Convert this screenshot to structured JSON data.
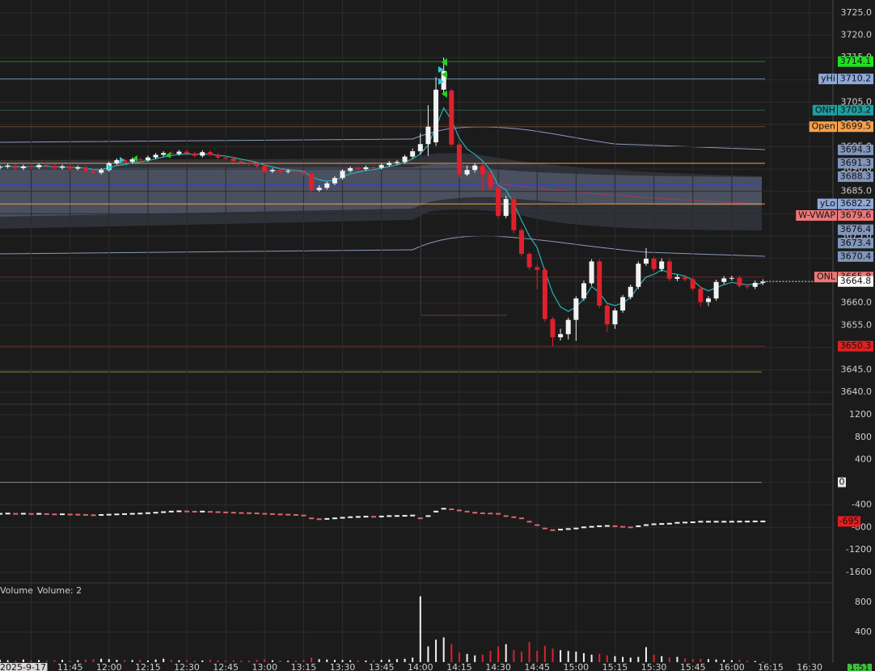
{
  "chart_data": [
    {
      "type": "candlestick",
      "xlim": [
        "11:18",
        "16:39"
      ],
      "x": [
        "11:18",
        "11:21",
        "11:24",
        "11:27",
        "11:30",
        "11:33",
        "11:36",
        "11:39",
        "11:42",
        "11:45",
        "11:48",
        "11:51",
        "11:54",
        "11:57",
        "12:00",
        "12:03",
        "12:06",
        "12:09",
        "12:12",
        "12:15",
        "12:18",
        "12:21",
        "12:24",
        "12:27",
        "12:30",
        "12:33",
        "12:36",
        "12:39",
        "12:42",
        "12:45",
        "12:48",
        "12:51",
        "12:54",
        "12:57",
        "13:00",
        "13:03",
        "13:06",
        "13:09",
        "13:12",
        "13:15",
        "13:18",
        "13:21",
        "13:24",
        "13:27",
        "13:30",
        "13:33",
        "13:36",
        "13:39",
        "13:42",
        "13:45",
        "13:48",
        "13:51",
        "13:54",
        "13:57",
        "14:00",
        "14:03",
        "14:06",
        "14:09",
        "14:12",
        "14:15",
        "14:18",
        "14:21",
        "14:24",
        "14:27",
        "14:30",
        "14:33",
        "14:36",
        "14:39",
        "14:42",
        "14:45",
        "14:48",
        "14:51",
        "14:54",
        "14:57",
        "15:00",
        "15:03",
        "15:06",
        "15:09",
        "15:12",
        "15:15",
        "15:18",
        "15:21",
        "15:24",
        "15:27",
        "15:30",
        "15:33",
        "15:36",
        "15:39",
        "15:42",
        "15:45",
        "15:48",
        "15:51",
        "15:54",
        "15:57",
        "16:00",
        "16:03",
        "16:06",
        "16:09",
        "16:12"
      ],
      "open": [
        3690.3,
        3690.5,
        3690.8,
        3690.2,
        3690.6,
        3690.4,
        3690.9,
        3690.7,
        3690.3,
        3690.6,
        3690.1,
        3690.4,
        3689.6,
        3689.2,
        3689.8,
        3691.3,
        3692.0,
        3691.6,
        3692.2,
        3692.0,
        3692.6,
        3693.2,
        3693.6,
        3693.4,
        3693.9,
        3693.5,
        3693.0,
        3693.8,
        3693.2,
        3692.6,
        3692.4,
        3691.8,
        3691.5,
        3691.1,
        3690.7,
        3689.5,
        3689.8,
        3689.4,
        3689.6,
        3689.3,
        3689.0,
        3685.3,
        3685.8,
        3686.8,
        3688.0,
        3689.6,
        3690.2,
        3690.0,
        3690.4,
        3690.3,
        3690.9,
        3691.4,
        3691.6,
        3692.8,
        3694.0,
        3695.6,
        3696.0,
        3707.8,
        3707.6,
        3695.5,
        3688.8,
        3689.8,
        3690.8,
        3688.8,
        3685.9,
        3679.5,
        3683.3,
        3676.3,
        3671.0,
        3668.0,
        3667.4,
        3656.4,
        3652.3,
        3653.0,
        3656.2,
        3661.0,
        3664.4,
        3669.3,
        3659.4,
        3655.2,
        3658.3,
        3661.3,
        3663.6,
        3668.8,
        3669.9,
        3667.6,
        3669.3,
        3665.4,
        3665.8,
        3665.3,
        3663.2,
        3660.2,
        3661.0,
        3664.7,
        3665.5,
        3665.6,
        3663.8,
        3663.6,
        3664.5
      ],
      "high": [
        3690.9,
        3691.2,
        3691.2,
        3691.0,
        3691.0,
        3691.3,
        3691.3,
        3691.1,
        3691.0,
        3691.0,
        3690.8,
        3690.8,
        3690.0,
        3690.2,
        3691.7,
        3692.4,
        3692.4,
        3692.6,
        3692.6,
        3693.0,
        3693.6,
        3694.0,
        3694.0,
        3694.3,
        3694.3,
        3693.9,
        3694.2,
        3694.2,
        3693.6,
        3693.0,
        3692.8,
        3692.2,
        3691.9,
        3691.5,
        3691.1,
        3690.2,
        3690.2,
        3690.0,
        3690.0,
        3689.7,
        3689.4,
        3686.4,
        3687.2,
        3688.4,
        3690.0,
        3690.6,
        3690.6,
        3690.8,
        3690.8,
        3691.3,
        3691.8,
        3692.0,
        3693.2,
        3694.6,
        3698.0,
        3704.3,
        3710.6,
        3715.0,
        3708.0,
        3696.3,
        3690.8,
        3691.3,
        3691.2,
        3689.4,
        3686.4,
        3684.0,
        3683.8,
        3676.8,
        3671.4,
        3668.6,
        3667.9,
        3656.9,
        3654.2,
        3656.7,
        3661.5,
        3665.0,
        3669.8,
        3669.8,
        3659.8,
        3658.8,
        3661.8,
        3664.1,
        3669.3,
        3672.3,
        3670.4,
        3670.0,
        3670.0,
        3666.3,
        3666.3,
        3665.8,
        3663.7,
        3661.5,
        3665.2,
        3666.0,
        3666.1,
        3666.1,
        3664.3,
        3665.0,
        3665.3
      ],
      "low": [
        3689.9,
        3690.1,
        3689.8,
        3689.8,
        3690.0,
        3690.0,
        3690.3,
        3689.9,
        3689.9,
        3689.7,
        3689.7,
        3689.2,
        3688.8,
        3688.8,
        3689.4,
        3690.9,
        3691.2,
        3691.2,
        3691.6,
        3691.6,
        3692.2,
        3692.8,
        3693.0,
        3693.0,
        3693.1,
        3692.6,
        3692.6,
        3692.8,
        3692.2,
        3692.0,
        3691.4,
        3691.1,
        3690.7,
        3690.3,
        3689.1,
        3689.1,
        3689.0,
        3689.0,
        3688.9,
        3688.6,
        3684.3,
        3684.9,
        3685.4,
        3686.4,
        3687.6,
        3689.2,
        3689.6,
        3689.6,
        3689.9,
        3689.9,
        3690.5,
        3691.0,
        3691.2,
        3692.4,
        3693.2,
        3693.0,
        3695.2,
        3706.5,
        3695.0,
        3688.2,
        3688.4,
        3689.2,
        3685.0,
        3685.3,
        3678.9,
        3679.0,
        3675.6,
        3670.4,
        3667.4,
        3663.0,
        3655.8,
        3650.3,
        3651.6,
        3651.8,
        3651.5,
        3660.5,
        3663.9,
        3658.8,
        3653.5,
        3654.2,
        3657.8,
        3660.8,
        3663.1,
        3668.3,
        3667.0,
        3667.0,
        3664.9,
        3664.9,
        3664.8,
        3662.7,
        3659.2,
        3659.3,
        3660.5,
        3664.2,
        3665.0,
        3663.3,
        3663.1,
        3663.1,
        3664.0
      ],
      "close": [
        3690.5,
        3690.8,
        3690.2,
        3690.6,
        3690.4,
        3690.9,
        3690.7,
        3690.3,
        3690.6,
        3690.1,
        3690.4,
        3689.6,
        3689.2,
        3689.8,
        3691.3,
        3692.0,
        3691.6,
        3692.2,
        3692.0,
        3692.6,
        3693.2,
        3693.6,
        3693.4,
        3693.9,
        3693.5,
        3693.0,
        3693.8,
        3693.2,
        3692.6,
        3692.4,
        3691.8,
        3691.5,
        3691.1,
        3690.7,
        3689.5,
        3689.8,
        3689.4,
        3689.6,
        3689.3,
        3689.0,
        3685.3,
        3685.8,
        3686.8,
        3688.0,
        3689.6,
        3690.2,
        3690.0,
        3690.4,
        3690.3,
        3690.9,
        3691.4,
        3691.6,
        3692.8,
        3694.0,
        3695.6,
        3699.5,
        3707.8,
        3712.0,
        3695.5,
        3688.8,
        3689.8,
        3690.8,
        3688.8,
        3685.9,
        3679.5,
        3683.3,
        3676.3,
        3671.0,
        3668.0,
        3667.4,
        3656.4,
        3652.3,
        3653.0,
        3656.2,
        3661.0,
        3664.4,
        3669.3,
        3659.4,
        3655.2,
        3658.3,
        3661.3,
        3663.6,
        3668.8,
        3669.9,
        3667.6,
        3669.3,
        3665.4,
        3665.8,
        3665.3,
        3663.2,
        3660.2,
        3661.0,
        3664.7,
        3665.5,
        3665.6,
        3663.8,
        3663.6,
        3664.5,
        3664.8
      ],
      "up_color": "#f2f2f2",
      "down_color": "#e0202c",
      "series": [
        {
          "color": "#27b3b8",
          "values": [
            3690.5,
            3690.6,
            3690.5,
            3690.5,
            3690.5,
            3690.6,
            3690.6,
            3690.5,
            3690.5,
            3690.4,
            3690.4,
            3690.2,
            3689.9,
            3689.9,
            3690.3,
            3690.8,
            3691.0,
            3691.4,
            3691.6,
            3691.9,
            3692.3,
            3692.7,
            3693.0,
            3693.3,
            3693.4,
            3693.3,
            3693.4,
            3693.3,
            3693.1,
            3692.9,
            3692.6,
            3692.2,
            3691.9,
            3691.5,
            3690.9,
            3690.5,
            3690.1,
            3689.9,
            3689.7,
            3689.5,
            3688.3,
            3687.6,
            3687.3,
            3687.5,
            3688.2,
            3688.9,
            3689.3,
            3689.7,
            3689.9,
            3690.2,
            3690.6,
            3690.9,
            3691.5,
            3692.3,
            3693.4,
            3695.4,
            3699.5,
            3703.7,
            3701.0,
            3696.9,
            3694.5,
            3693.3,
            3691.8,
            3689.8,
            3686.4,
            3685.3,
            3682.3,
            3678.5,
            3675.0,
            3672.4,
            3667.1,
            3662.2,
            3659.1,
            3658.1,
            3659.1,
            3660.9,
            3663.7,
            3662.3,
            3659.9,
            3659.4,
            3660.0,
            3661.2,
            3663.7,
            3665.8,
            3666.4,
            3667.4,
            3666.7,
            3666.4,
            3666.0,
            3665.1,
            3663.5,
            3662.7,
            3663.4,
            3664.1,
            3664.6,
            3664.3,
            3664.1,
            3664.2,
            3664.4
          ]
        }
      ],
      "levels": [
        {
          "value": 3714.1,
          "color": "#22e022",
          "line_color": "#2f7a2f"
        },
        {
          "name": "yHi",
          "value": 3710.2,
          "color": "#8ea8d8",
          "line_color": "#6f84a8"
        },
        {
          "name": "ONH",
          "value": 3703.2,
          "color": "#1f9e9e",
          "line_color": "#2d5a3a"
        },
        {
          "name": "Open",
          "value": 3699.5,
          "color": "#f5a04a",
          "line_color": "#6a4630"
        },
        {
          "value": 3694.3,
          "color": "#8196ba"
        },
        {
          "value": 3691.3,
          "color": "#8196ba",
          "line_color": "#f0a040"
        },
        {
          "value": 3688.3,
          "color": "#8196ba"
        },
        {
          "name": "yLo",
          "value": 3682.2,
          "color": "#8ea8d8",
          "line_color": "#f0a040"
        },
        {
          "name": "W-VWAP",
          "value": 3679.6,
          "color": "#ec7878"
        },
        {
          "value": 3676.4,
          "color": "#8196ba"
        },
        {
          "value": 3673.4,
          "color": "#8196ba"
        },
        {
          "value": 3670.4,
          "color": "#8196ba"
        },
        {
          "name": "ONL",
          "value": 3665.8,
          "color": "#ec7878",
          "line_color": "#6a2a2a"
        },
        {
          "value": 3650.3,
          "color": "#e02020",
          "line_color": "#6a2a2a"
        }
      ],
      "ylim": [
        3638.2,
        3727.9
      ],
      "yticks": [
        {
          "value": 3640,
          "label": "3640.0"
        },
        {
          "value": 3645,
          "label": "3645.0"
        },
        {
          "value": 3650,
          "label": "3650.0"
        },
        {
          "value": 3655,
          "label": "3655.0"
        },
        {
          "value": 3660,
          "label": "3660.0"
        },
        {
          "value": 3665,
          "label": "3665.0"
        },
        {
          "value": 3670,
          "label": "3670.0"
        },
        {
          "value": 3675,
          "label": "3675.0"
        },
        {
          "value": 3680,
          "label": "3680.0"
        },
        {
          "value": 3685,
          "label": "3685.0"
        },
        {
          "value": 3690,
          "label": "3690.0"
        },
        {
          "value": 3695,
          "label": "3695.0"
        },
        {
          "value": 3700,
          "label": "3700.0"
        },
        {
          "value": 3705,
          "label": "3705.0"
        },
        {
          "value": 3710,
          "label": "3710.0"
        },
        {
          "value": 3715,
          "label": "3715.0"
        },
        {
          "value": 3720,
          "label": "3720.0"
        },
        {
          "value": 3725,
          "label": "3725.0"
        }
      ],
      "xticks": [
        {
          "value": "11:30",
          "label": "2025-9-17"
        },
        "11:45",
        "12:00",
        "12:15",
        "12:30",
        "12:45",
        "13:00",
        "13:15",
        "13:30",
        "13:45",
        "14:00",
        "14:15",
        "14:30",
        "14:45",
        "15:00",
        "15:15",
        "15:30",
        "15:45",
        "16:00",
        "16:15",
        "16:30"
      ],
      "countdown": "1:51",
      "grid": true
    },
    {
      "type": "dash",
      "values": [
        -560,
        -555,
        -560,
        -558,
        -562,
        -560,
        -565,
        -570,
        -568,
        -572,
        -575,
        -580,
        -585,
        -580,
        -575,
        -570,
        -565,
        -560,
        -555,
        -548,
        -540,
        -530,
        -520,
        -515,
        -518,
        -522,
        -520,
        -525,
        -530,
        -535,
        -540,
        -545,
        -548,
        -552,
        -560,
        -565,
        -570,
        -575,
        -580,
        -590,
        -640,
        -655,
        -650,
        -640,
        -630,
        -620,
        -615,
        -610,
        -612,
        -608,
        -600,
        -598,
        -595,
        -590,
        -640,
        -600,
        -520,
        -470,
        -480,
        -500,
        -520,
        -540,
        -550,
        -555,
        -560,
        -600,
        -620,
        -640,
        -700,
        -760,
        -820,
        -850,
        -840,
        -830,
        -820,
        -800,
        -790,
        -780,
        -775,
        -780,
        -790,
        -800,
        -780,
        -760,
        -745,
        -740,
        -735,
        -720,
        -715,
        -710,
        -700,
        -700,
        -700,
        -700,
        -700,
        -698,
        -697,
        -695,
        -695
      ],
      "up_color": "#f2f2f2",
      "down_color": "#e06470",
      "last_color": "#e02020",
      "ylim": [
        -1772,
        1315
      ],
      "yticks": [
        1200,
        800,
        400,
        0,
        -400,
        -800,
        -1200,
        -1600
      ],
      "grid": true
    },
    {
      "type": "bar",
      "title": "Volume",
      "label": "Volume: 2",
      "values": [
        30,
        25,
        20,
        35,
        22,
        28,
        18,
        25,
        30,
        20,
        26,
        35,
        40,
        45,
        40,
        30,
        25,
        28,
        30,
        22,
        35,
        45,
        30,
        25,
        28,
        20,
        22,
        30,
        25,
        20,
        25,
        22,
        20,
        30,
        40,
        25,
        20,
        18,
        22,
        30,
        60,
        40,
        35,
        30,
        28,
        25,
        22,
        20,
        25,
        30,
        35,
        40,
        45,
        60,
        880,
        210,
        300,
        330,
        240,
        130,
        110,
        90,
        100,
        150,
        210,
        240,
        160,
        140,
        270,
        150,
        220,
        180,
        160,
        150,
        140,
        120,
        100,
        110,
        90,
        80,
        70,
        60,
        70,
        200,
        100,
        80,
        60,
        70,
        50,
        40,
        45,
        40,
        35,
        30,
        25,
        30,
        20,
        15,
        2
      ],
      "ylim": [
        0,
        1049
      ],
      "yticks": [
        800,
        400
      ],
      "grid": true
    }
  ]
}
